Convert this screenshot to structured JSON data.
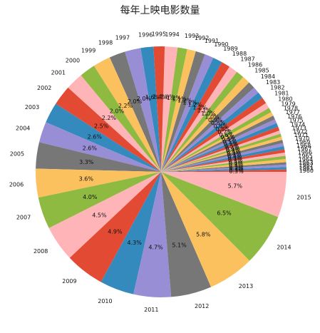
{
  "chart_data": {
    "type": "pie",
    "title": "每年上映电影数量",
    "categories": [
      "1960",
      "1961",
      "1962",
      "1963",
      "1964",
      "1965",
      "1966",
      "1967",
      "1968",
      "1969",
      "1970",
      "1971",
      "1972",
      "1973",
      "1974",
      "1975",
      "1976",
      "1977",
      "1978",
      "1979",
      "1980",
      "1981",
      "1982",
      "1983",
      "1984",
      "1985",
      "1986",
      "1987",
      "1988",
      "1989",
      "1990",
      "1991",
      "1992",
      "1993",
      "1994",
      "1995",
      "1996",
      "1997",
      "1998",
      "1999",
      "2000",
      "2001",
      "2002",
      "2003",
      "2004",
      "2005",
      "2006",
      "2007",
      "2008",
      "2009",
      "2010",
      "2011",
      "2012",
      "2013",
      "2014",
      "2015"
    ],
    "values": [
      0.3,
      0.3,
      0.3,
      0.3,
      0.4,
      0.4,
      0.4,
      0.4,
      0.4,
      0.4,
      0.4,
      0.4,
      0.4,
      0.4,
      0.5,
      0.5,
      0.5,
      0.5,
      0.5,
      0.6,
      0.7,
      0.8,
      0.8,
      0.8,
      0.9,
      1.0,
      1.0,
      1.1,
      1.1,
      1.2,
      1.1,
      1.2,
      1.1,
      1.2,
      1.6,
      1.4,
      1.6,
      2.0,
      2.0,
      2.2,
      2.0,
      2.2,
      2.5,
      2.6,
      2.6,
      3.3,
      3.6,
      4.0,
      4.5,
      4.9,
      4.3,
      4.7,
      5.1,
      5.8,
      6.5,
      5.7
    ],
    "data_labels": [
      "0.3%",
      "0.3%",
      "0.3%",
      "0.3%",
      "0.4%",
      "0.4%",
      "0.4%",
      "0.4%",
      "0.4%",
      "0.4%",
      "0.4%",
      "0.4%",
      "0.4%",
      "0.4%",
      "0.5%",
      "0.5%",
      "0.5%",
      "0.5%",
      "0.5%",
      "0.6%",
      "0.7%",
      "0.8%",
      "0.8%",
      "0.8%",
      "0.9%",
      "1.0%",
      "1.0%",
      "1.1%",
      "1.1%",
      "1.2%",
      "1.1%",
      "1.2%",
      "1.1%",
      "1.2%",
      "1.6%",
      "1.4%",
      "1.6%",
      "2.0%",
      "2.0%",
      "2.2%",
      "2.0%",
      "2.2%",
      "2.5%",
      "2.6%",
      "2.6%",
      "3.3%",
      "3.6%",
      "4.0%",
      "4.5%",
      "4.9%",
      "4.3%",
      "4.7%",
      "5.1%",
      "5.8%",
      "6.5%",
      "5.7%"
    ],
    "colors": [
      "#E24A33",
      "#348ABD",
      "#988ED5",
      "#777777",
      "#FBC15E",
      "#8EBA42",
      "#FFB5B8"
    ],
    "start_angle_deg": 0,
    "direction": "counterclockwise",
    "legend": "none"
  }
}
